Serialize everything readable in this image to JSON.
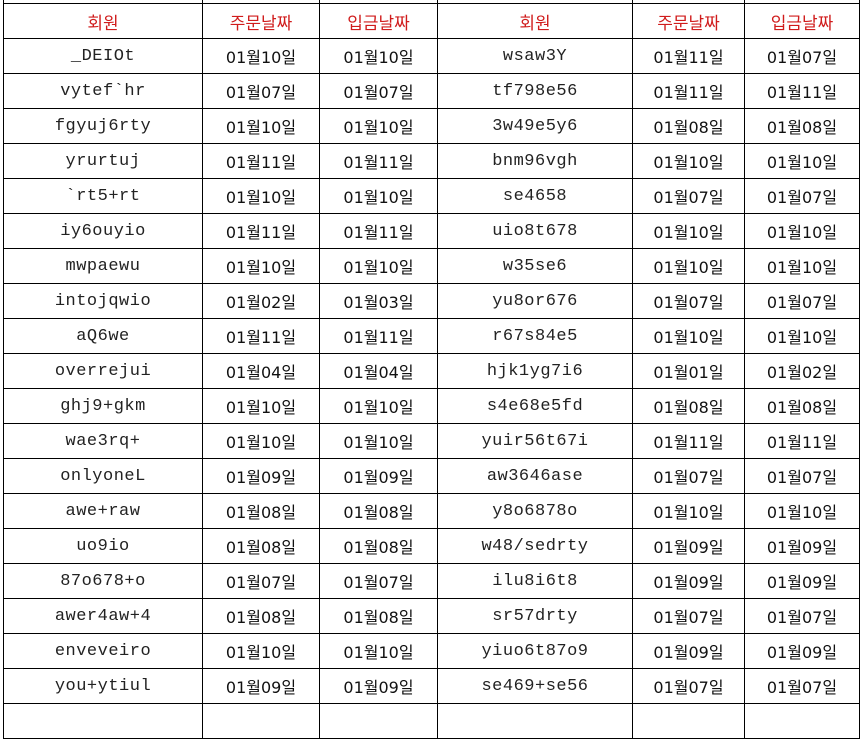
{
  "header": {
    "color": "#d01c1c",
    "cols": [
      "회원",
      "주문날짜",
      "입금날짜",
      "회원",
      "주문날짜",
      "입금날짜"
    ]
  },
  "rows": [
    [
      "_DEIOt",
      "01월10일",
      "01월10일",
      "wsaw3Y",
      "01월11일",
      "01월07일"
    ],
    [
      "vytef`hr",
      "01월07일",
      "01월07일",
      "tf798e56",
      "01월11일",
      "01월11일"
    ],
    [
      "fgyuj6rty",
      "01월10일",
      "01월10일",
      "3w49e5y6",
      "01월08일",
      "01월08일"
    ],
    [
      "yrurtuj",
      "01월11일",
      "01월11일",
      "bnm96vgh",
      "01월10일",
      "01월10일"
    ],
    [
      "`rt5+rt",
      "01월10일",
      "01월10일",
      "se4658",
      "01월07일",
      "01월07일"
    ],
    [
      "iy6ouyio",
      "01월11일",
      "01월11일",
      "uio8t678",
      "01월10일",
      "01월10일"
    ],
    [
      "mwpaewu",
      "01월10일",
      "01월10일",
      "w35se6",
      "01월10일",
      "01월10일"
    ],
    [
      "intojqwio",
      "01월02일",
      "01월03일",
      "yu8or676",
      "01월07일",
      "01월07일"
    ],
    [
      "aQ6we",
      "01월11일",
      "01월11일",
      "r67s84e5",
      "01월10일",
      "01월10일"
    ],
    [
      "overrejui",
      "01월04일",
      "01월04일",
      "hjk1yg7i6",
      "01월01일",
      "01월02일"
    ],
    [
      "ghj9+gkm",
      "01월10일",
      "01월10일",
      "s4e68e5fd",
      "01월08일",
      "01월08일"
    ],
    [
      "wae3rq+",
      "01월10일",
      "01월10일",
      "yuir56t67i",
      "01월11일",
      "01월11일"
    ],
    [
      "onlyoneL",
      "01월09일",
      "01월09일",
      "aw3646ase",
      "01월07일",
      "01월07일"
    ],
    [
      "awe+raw",
      "01월08일",
      "01월08일",
      "y8o6878o",
      "01월10일",
      "01월10일"
    ],
    [
      "uo9io",
      "01월08일",
      "01월08일",
      "w48/sedrty",
      "01월09일",
      "01월09일"
    ],
    [
      "87o678+o",
      "01월07일",
      "01월07일",
      "ilu8i6t8",
      "01월09일",
      "01월09일"
    ],
    [
      "awer4aw+4",
      "01월08일",
      "01월08일",
      "sr57drty",
      "01월07일",
      "01월07일"
    ],
    [
      "enveveiro",
      "01월10일",
      "01월10일",
      "yiuo6t87o9",
      "01월09일",
      "01월09일"
    ],
    [
      "you+ytiul",
      "01월09일",
      "01월09일",
      "se469+se56",
      "01월07일",
      "01월07일"
    ]
  ]
}
